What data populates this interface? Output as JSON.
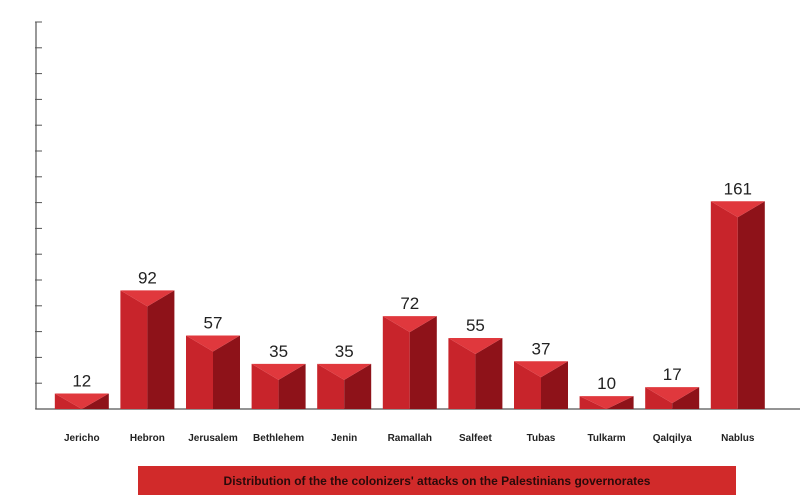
{
  "chart_data": {
    "type": "bar",
    "title": "Distribution of the the colonizers' attacks on the Palestinians governorates",
    "categories": [
      "Jericho",
      "Hebron",
      "Jerusalem",
      "Bethlehem",
      "Jenin",
      "Ramallah",
      "Salfeet",
      "Tubas",
      "Tulkarm",
      "Qalqilya",
      "Nablus"
    ],
    "values": [
      12,
      92,
      57,
      35,
      35,
      72,
      55,
      37,
      10,
      17,
      161
    ],
    "xlabel": "",
    "ylabel": "",
    "ylim": [
      0,
      300
    ],
    "grid": false,
    "y_tick_labels_shown": false,
    "bar_style": "3d-prism",
    "colors": {
      "bar_front": "#c8242b",
      "bar_side": "#8e1219",
      "bar_top": "#e0383d",
      "title_bg": "#d12a2a",
      "axis": "#555555"
    }
  }
}
